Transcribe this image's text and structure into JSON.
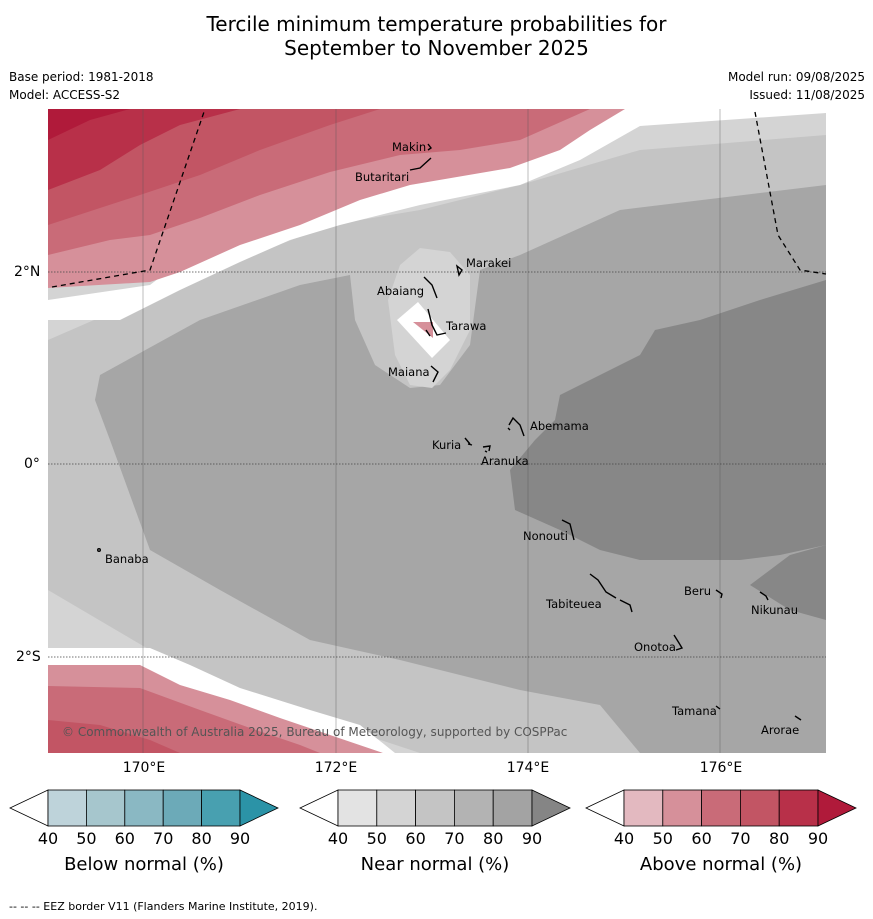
{
  "title_line1": "Tercile minimum temperature probabilities for",
  "title_line2": "September to November 2025",
  "base_period": "Base period: 1981-2018",
  "model": "Model: ACCESS-S2",
  "model_run": "Model run: 09/08/2025",
  "issued": "Issued: 11/08/2025",
  "map": {
    "lon_ticks": [
      "170°E",
      "172°E",
      "174°E",
      "176°E"
    ],
    "lat_ticks": [
      "2°N",
      "0°",
      "2°S"
    ],
    "copyright": "© Commonwealth of Australia 2025, Bureau of Meteorology, supported by COSPPac",
    "places": [
      "Makin",
      "Butaritari",
      "Marakei",
      "Abaiang",
      "Tarawa",
      "Maiana",
      "Abemama",
      "Kuria",
      "Aranuka",
      "Nonouti",
      "Banaba",
      "Beru",
      "Tabiteuea",
      "Nikunau",
      "Onotoa",
      "Tamana",
      "Arorae"
    ]
  },
  "colorbars": [
    {
      "title": "Below normal (%)",
      "ticks": [
        "40",
        "50",
        "60",
        "70",
        "80",
        "90"
      ],
      "colors": [
        "#bed3da",
        "#a6c6cd",
        "#8ab8c3",
        "#6caab8",
        "#48a0b0",
        "#2b93a7"
      ]
    },
    {
      "title": "Near normal (%)",
      "ticks": [
        "40",
        "50",
        "60",
        "70",
        "80",
        "90"
      ],
      "colors": [
        "#e3e3e3",
        "#d4d4d4",
        "#c4c4c4",
        "#b3b3b3",
        "#a3a3a3",
        "#858585"
      ]
    },
    {
      "title": "Above normal (%)",
      "ticks": [
        "40",
        "50",
        "60",
        "70",
        "80",
        "90"
      ],
      "colors": [
        "#e3b9c0",
        "#d6909a",
        "#c96b78",
        "#c25564",
        "#b83049",
        "#b01a3a"
      ]
    }
  ],
  "footnote": "--  --  -- EEZ border V11 (Flanders Marine Institute, 2019)."
}
